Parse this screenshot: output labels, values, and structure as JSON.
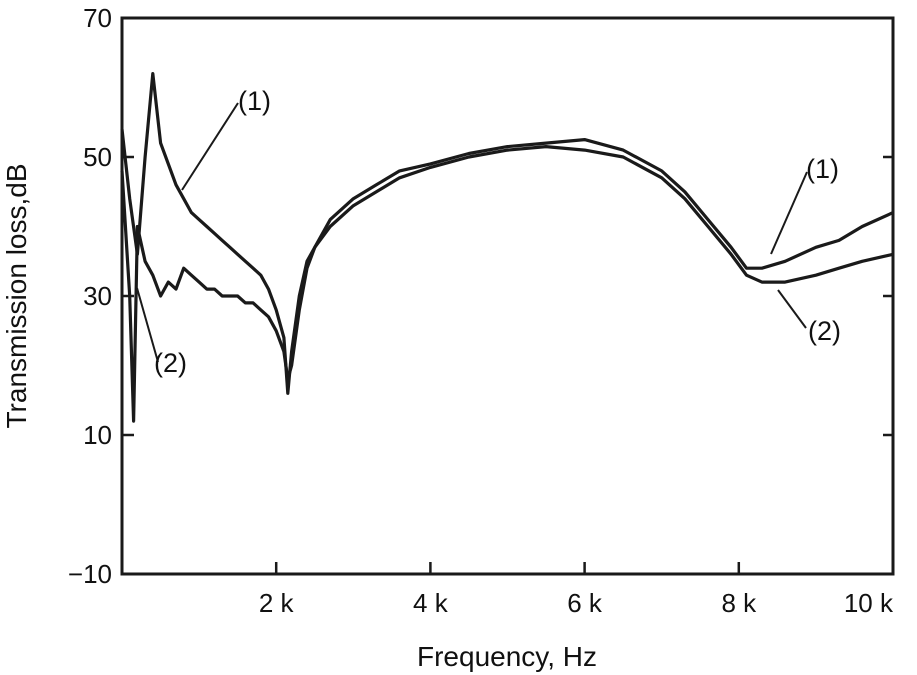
{
  "chart_data": {
    "type": "line",
    "title": "",
    "xlabel": "Frequency, Hz",
    "ylabel": "Transmission loss,dB",
    "xlim": [
      0,
      10000
    ],
    "ylim": [
      -10,
      70
    ],
    "xticks": [
      {
        "value": 2000,
        "label": "2 k"
      },
      {
        "value": 4000,
        "label": "4 k"
      },
      {
        "value": 6000,
        "label": "6 k"
      },
      {
        "value": 8000,
        "label": "8 k"
      },
      {
        "value": 10000,
        "label": "10 k"
      }
    ],
    "yticks": [
      {
        "value": -10,
        "label": "−10"
      },
      {
        "value": 10,
        "label": "10"
      },
      {
        "value": 30,
        "label": "30"
      },
      {
        "value": 50,
        "label": "50"
      },
      {
        "value": 70,
        "label": "70"
      }
    ],
    "grid": false,
    "legend": "none",
    "line_color": "#1a1a1a",
    "series": [
      {
        "label": "(1)",
        "x": [
          0,
          100,
          200,
          300,
          400,
          500,
          600,
          700,
          800,
          900,
          1000,
          1100,
          1200,
          1300,
          1400,
          1500,
          1600,
          1700,
          1800,
          1900,
          2000,
          2100,
          2150,
          2200,
          2300,
          2400,
          2500,
          2700,
          3000,
          3300,
          3600,
          4000,
          4500,
          5000,
          5500,
          6000,
          6500,
          7000,
          7300,
          7600,
          7900,
          8100,
          8300,
          8600,
          9000,
          9300,
          9600,
          10000
        ],
        "y": [
          54,
          44,
          36,
          50,
          62,
          52,
          49,
          46,
          44,
          42,
          41,
          40,
          39,
          38,
          37,
          36,
          35,
          34,
          33,
          31,
          28,
          24,
          16,
          22,
          30,
          35,
          37,
          41,
          44,
          46,
          48,
          49,
          50.5,
          51.5,
          52,
          52.5,
          51,
          48,
          45,
          41,
          37,
          34,
          34,
          35,
          37,
          38,
          40,
          42
        ]
      },
      {
        "label": "(2)",
        "x": [
          0,
          100,
          150,
          200,
          300,
          400,
          500,
          600,
          700,
          800,
          900,
          1000,
          1100,
          1200,
          1300,
          1400,
          1500,
          1600,
          1700,
          1800,
          1900,
          2000,
          2100,
          2150,
          2200,
          2300,
          2400,
          2500,
          2700,
          3000,
          3300,
          3600,
          4000,
          4500,
          5000,
          5500,
          6000,
          6500,
          7000,
          7300,
          7600,
          7900,
          8100,
          8300,
          8600,
          9000,
          9300,
          9600,
          10000
        ],
        "y": [
          48,
          30,
          12,
          40,
          35,
          33,
          30,
          32,
          31,
          34,
          33,
          32,
          31,
          31,
          30,
          30,
          30,
          29,
          29,
          28,
          27,
          25,
          22,
          18,
          20,
          28,
          34,
          37,
          40,
          43,
          45,
          47,
          48.5,
          50,
          51,
          51.5,
          51,
          50,
          47,
          44,
          40,
          36,
          33,
          32,
          32,
          33,
          34,
          35,
          36
        ]
      }
    ],
    "annotations": [
      "(1)",
      "(2)",
      "(1)",
      "(2)"
    ]
  }
}
